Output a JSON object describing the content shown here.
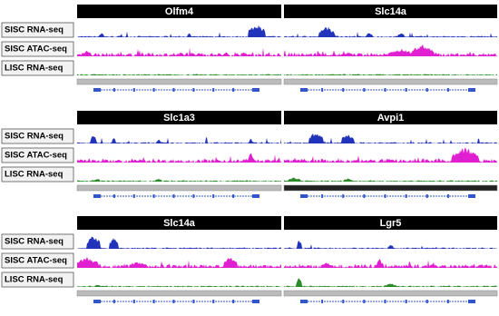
{
  "blocks": [
    {
      "genes": [
        "Olfm4",
        "Slc14a"
      ],
      "tracks": [
        "SISC RNA-seq",
        "SISC ATAC-seq",
        "LISC RNA-seq"
      ]
    },
    {
      "genes": [
        "Slc1a3",
        "Avpi1"
      ],
      "tracks": [
        "SISC RNA-seq",
        "SISC ATAC-seq",
        "LISC RNA-seq"
      ]
    },
    {
      "genes": [
        "Slc14a",
        "Lgr5"
      ],
      "tracks": [
        "SISC RNA-seq",
        "SISC ATAC-seq",
        "LISC RNA-seq"
      ]
    }
  ]
}
